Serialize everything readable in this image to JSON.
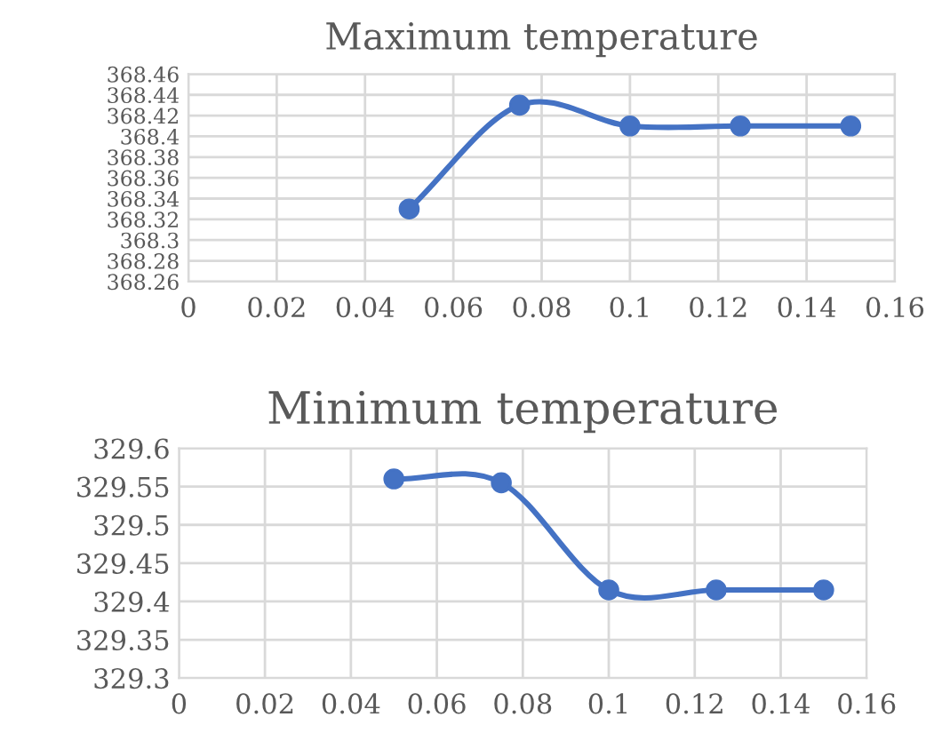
{
  "chart_data": [
    {
      "type": "line",
      "title": "Maximum temperature",
      "x": [
        0.05,
        0.075,
        0.1,
        0.125,
        0.15
      ],
      "series": [
        {
          "color": "#4472c4",
          "values": [
            368.33,
            368.43,
            368.41,
            368.41,
            368.41
          ]
        }
      ],
      "xlim": [
        0,
        0.16
      ],
      "xticks": [
        0,
        0.02,
        0.04,
        0.06,
        0.08,
        0.1,
        0.12,
        0.14,
        0.16
      ],
      "ylim": [
        368.26,
        368.46
      ],
      "yticks": [
        368.26,
        368.28,
        368.3,
        368.32,
        368.34,
        368.36,
        368.38,
        368.4,
        368.42,
        368.44,
        368.46
      ],
      "grid": true,
      "marker": "circle",
      "line_style": "solid"
    },
    {
      "type": "line",
      "title": "Minimum temperature",
      "x": [
        0.05,
        0.075,
        0.1,
        0.125,
        0.15
      ],
      "series": [
        {
          "color": "#4472c4",
          "values": [
            329.56,
            329.555,
            329.415,
            329.415,
            329.415
          ]
        }
      ],
      "xlim": [
        0,
        0.16
      ],
      "xticks": [
        0,
        0.02,
        0.04,
        0.06,
        0.08,
        0.1,
        0.12,
        0.14,
        0.16
      ],
      "ylim": [
        329.3,
        329.6
      ],
      "yticks": [
        329.3,
        329.35,
        329.4,
        329.45,
        329.5,
        329.55,
        329.6
      ],
      "grid": true,
      "marker": "circle",
      "line_style": "solid"
    }
  ]
}
